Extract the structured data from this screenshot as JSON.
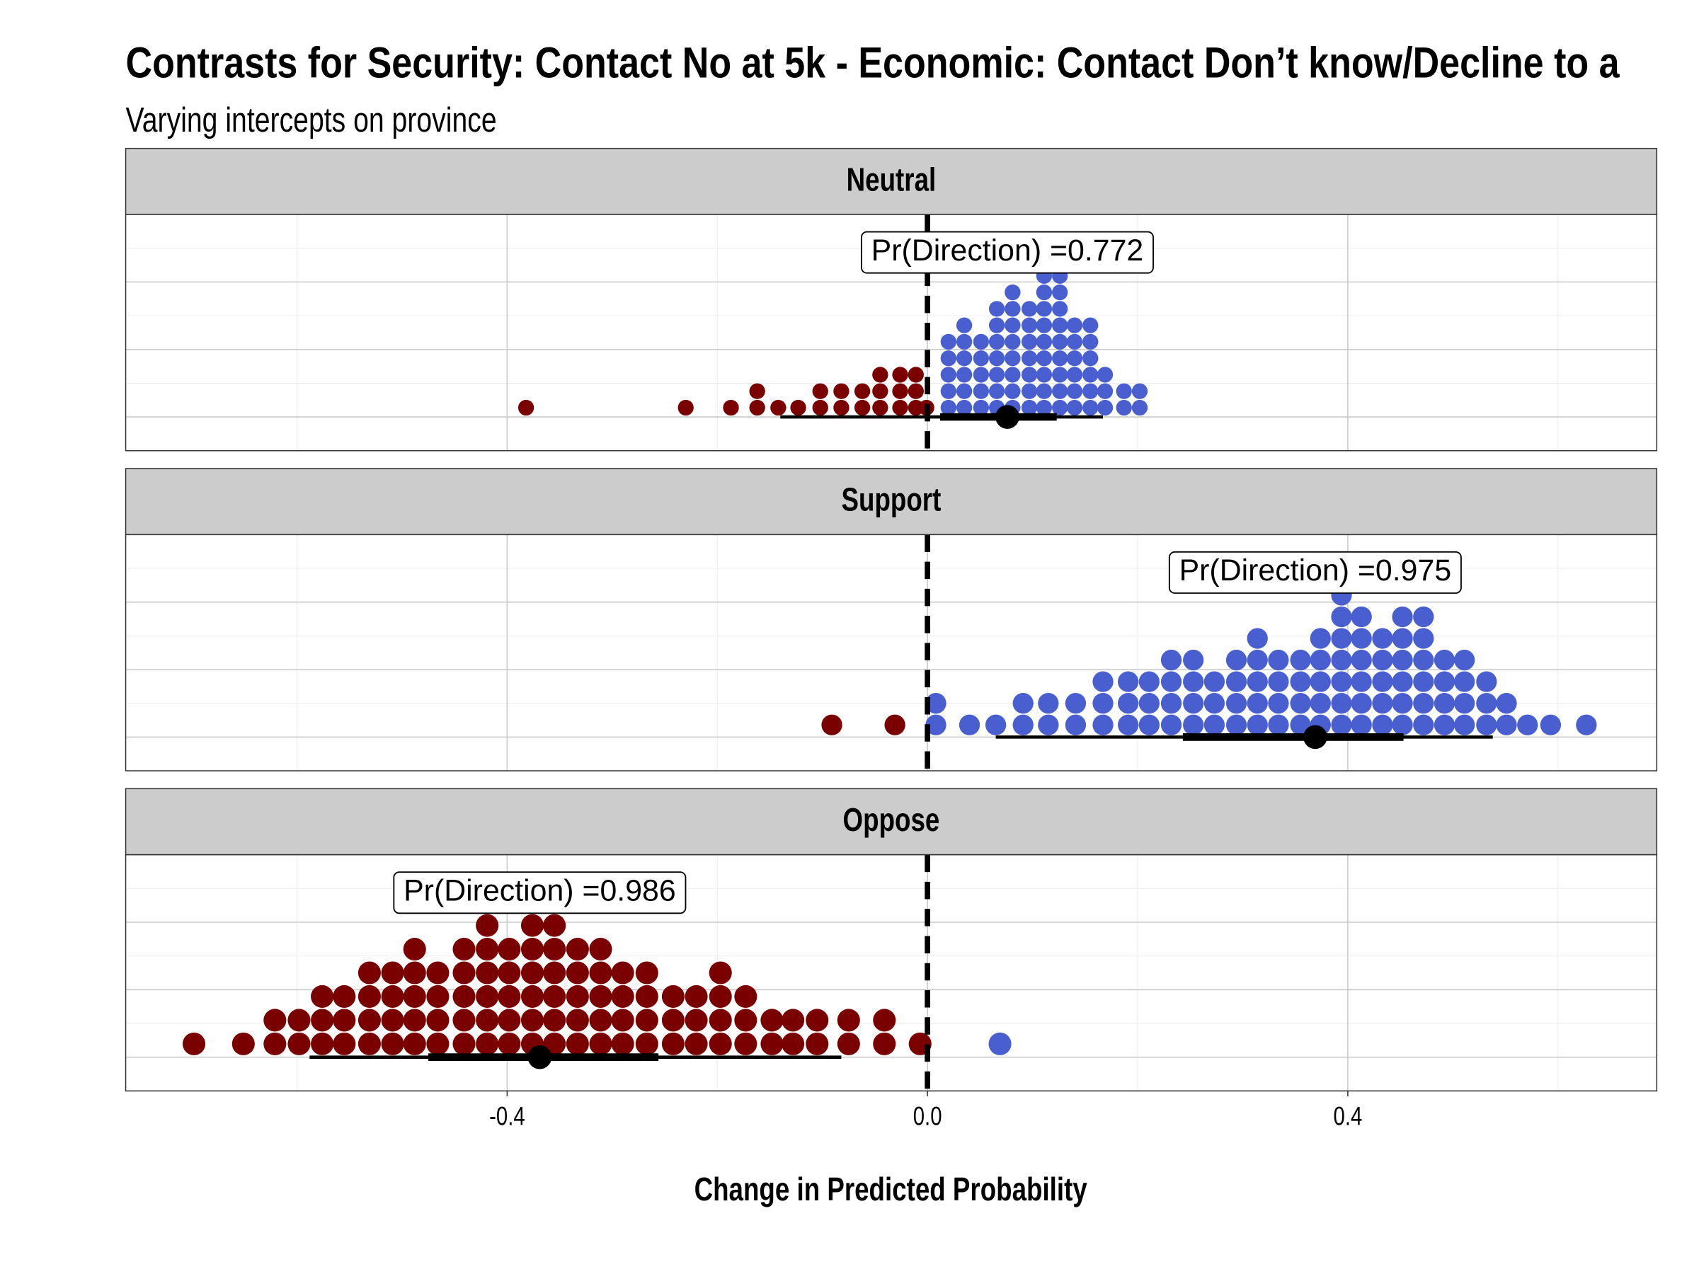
{
  "chart_data": {
    "type": "dotplot",
    "title": "Contrasts for Security: Contact No at 5k - Economic: Contact Don’t know/Decline to a",
    "subtitle": "Varying intercepts on province",
    "x_label": "Change in Predicted Probability",
    "xlim": [
      -0.763,
      0.694
    ],
    "xticks": [
      -0.4,
      {
        "value": 0,
        "label": "0.0"
      },
      0.4
    ],
    "minor_xticks": [
      -0.6,
      -0.2,
      0.2,
      0.6
    ],
    "ylim": [
      -0.125,
      0.75
    ],
    "yticks": [
      0,
      0.25,
      0.5
    ],
    "minor_yticks": [
      0.125,
      0.375,
      0.625
    ],
    "grid": true,
    "reference_line": 0,
    "negative_color": "#7a0000",
    "positive_color": "#4a5fcf",
    "panels": [
      {
        "name": "Neutral",
        "annotation": "Pr(Direction) =0.772",
        "x": [
          -0.382,
          -0.23,
          -0.187,
          -0.162,
          -0.142,
          -0.123,
          -0.102,
          -0.082,
          -0.062,
          -0.045,
          -0.026,
          -0.011,
          -0.001,
          0.02,
          0.035,
          0.051,
          0.066,
          0.081,
          0.097,
          0.111,
          0.126,
          0.14,
          0.155,
          0.169,
          0.187,
          0.202
        ],
        "counts": [
          1,
          1,
          1,
          2,
          1,
          1,
          2,
          2,
          2,
          3,
          3,
          3,
          1,
          5,
          6,
          5,
          7,
          8,
          7,
          9,
          9,
          6,
          6,
          3,
          2,
          2
        ],
        "point": 0.076,
        "inner_interval": [
          0.012,
          0.123
        ],
        "outer_interval": [
          -0.14,
          0.167
        ]
      },
      {
        "name": "Support",
        "annotation": "Pr(Direction) =0.975",
        "x": [
          -0.091,
          -0.031,
          0.008,
          0.04,
          0.065,
          0.091,
          0.115,
          0.141,
          0.167,
          0.191,
          0.211,
          0.232,
          0.253,
          0.273,
          0.294,
          0.314,
          0.334,
          0.355,
          0.374,
          0.394,
          0.413,
          0.433,
          0.452,
          0.472,
          0.492,
          0.511,
          0.532,
          0.551,
          0.571,
          0.593,
          0.627
        ],
        "counts": [
          1,
          1,
          2,
          1,
          1,
          2,
          2,
          2,
          3,
          3,
          3,
          4,
          4,
          3,
          4,
          5,
          4,
          4,
          5,
          7,
          6,
          5,
          6,
          6,
          4,
          4,
          3,
          2,
          1,
          1,
          1
        ],
        "point": 0.369,
        "inner_interval": [
          0.243,
          0.453
        ],
        "outer_interval": [
          0.065,
          0.538
        ]
      },
      {
        "name": "Oppose",
        "annotation": "Pr(Direction) =0.986",
        "x": [
          -0.698,
          -0.651,
          -0.621,
          -0.598,
          -0.576,
          -0.555,
          -0.531,
          -0.509,
          -0.488,
          -0.466,
          -0.441,
          -0.419,
          -0.398,
          -0.376,
          -0.355,
          -0.333,
          -0.311,
          -0.29,
          -0.267,
          -0.242,
          -0.22,
          -0.197,
          -0.173,
          -0.148,
          -0.128,
          -0.105,
          -0.075,
          -0.041,
          -0.007,
          0.069
        ],
        "counts": [
          1,
          1,
          2,
          2,
          3,
          3,
          4,
          4,
          5,
          4,
          5,
          6,
          5,
          6,
          6,
          5,
          5,
          4,
          4,
          3,
          3,
          4,
          3,
          2,
          2,
          2,
          2,
          2,
          1,
          1
        ],
        "point": -0.369,
        "inner_interval": [
          -0.475,
          -0.256
        ],
        "outer_interval": [
          -0.588,
          -0.082
        ]
      }
    ]
  }
}
